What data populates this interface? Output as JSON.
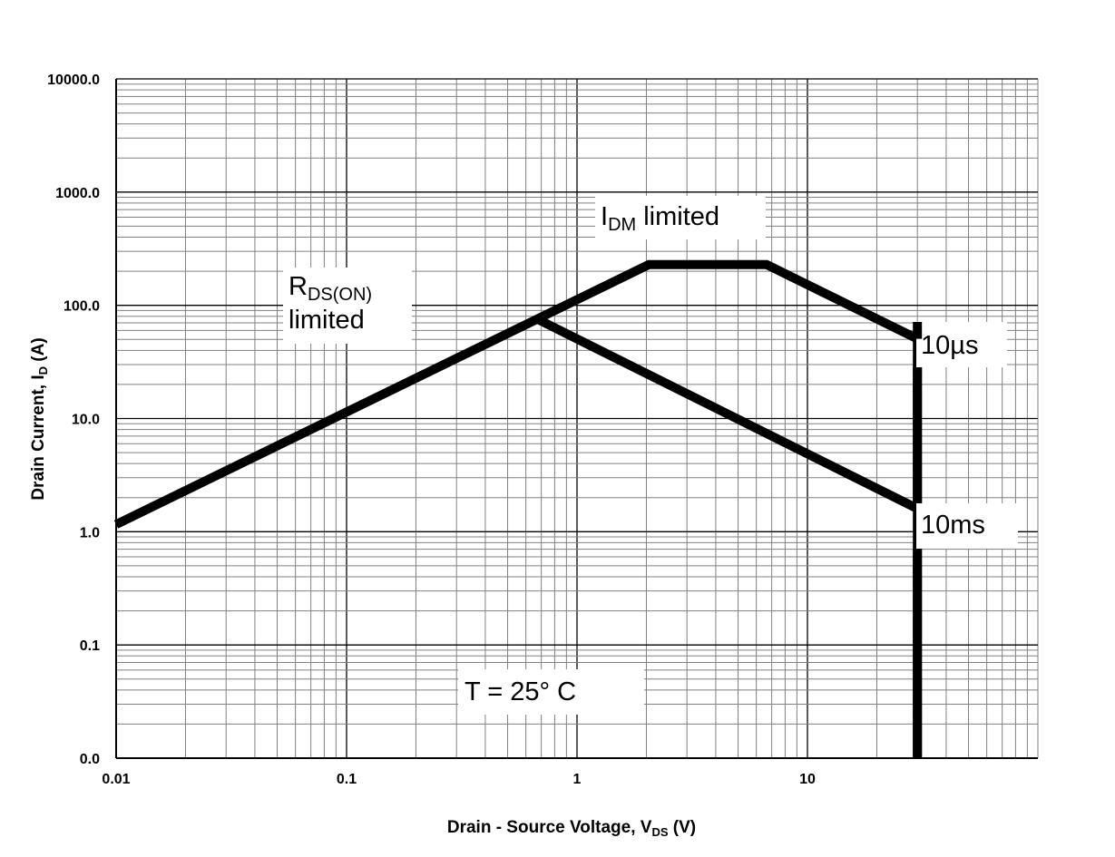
{
  "chart_data": {
    "type": "line",
    "title": "",
    "xlabel": {
      "main": "Drain - Source Voltage, V",
      "sub": "DS",
      "unit": " (V)"
    },
    "ylabel": {
      "main": "Drain Current, I",
      "sub": "D",
      "unit": " (A)"
    },
    "x_scale": "log",
    "y_scale": "log",
    "xlim": [
      0.01,
      100
    ],
    "ylim": [
      0.01,
      10000
    ],
    "grid": true,
    "x_tick_values": [
      0.01,
      0.1,
      1,
      10
    ],
    "x_tick_labels": [
      "0.01",
      "0.1",
      "1",
      "10"
    ],
    "y_tick_values": [
      0.01,
      0.1,
      1,
      10,
      100,
      1000,
      10000
    ],
    "y_tick_labels": [
      "0.0",
      "0.1",
      "1.0",
      "10.0",
      "100.0",
      "1000.0",
      "10000.0"
    ],
    "series": [
      {
        "x": [
          0.01,
          2.05,
          6.65,
          30,
          30
        ],
        "y": [
          1.16,
          229,
          229,
          50.6,
          0.01
        ]
      },
      {
        "x": [
          0.66,
          30
        ],
        "y": [
          77,
          1.6
        ]
      }
    ],
    "annotations": [
      {
        "id": "rds",
        "main": "R",
        "sub": "DS(ON)",
        "line2": "limited"
      },
      {
        "id": "idm",
        "main": "I",
        "sub": "DM",
        "rest": " limited"
      },
      {
        "id": "us",
        "text": "10µs"
      },
      {
        "id": "ms",
        "text": "10ms"
      },
      {
        "id": "temp",
        "text": "T = 25°  C"
      }
    ],
    "colors": {
      "line": "#000000",
      "minor_grid": "#808080",
      "major_grid": "#000000"
    }
  }
}
